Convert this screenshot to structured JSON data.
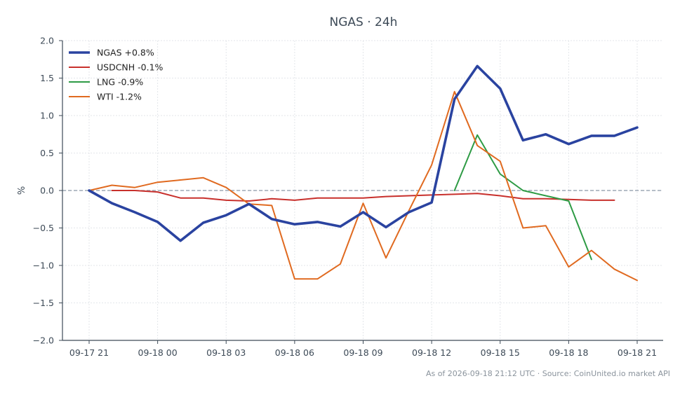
{
  "chart_data": {
    "type": "line",
    "title": "NGAS · 24h",
    "xlabel": "",
    "ylabel": "%",
    "ylim": [
      -2.0,
      2.0
    ],
    "yticks": [
      "2.0",
      "1.5",
      "1.0",
      "0.5",
      "0.0",
      "−0.5",
      "−1.0",
      "−1.5",
      "−2.0"
    ],
    "ytick_values": [
      2.0,
      1.5,
      1.0,
      0.5,
      0.0,
      -0.5,
      -1.0,
      -1.5,
      -2.0
    ],
    "xlim": [
      0,
      24.5
    ],
    "xtick_labels": [
      "09-17 21",
      "09-18 00",
      "09-18 03",
      "09-18 06",
      "09-18 09",
      "09-18 12",
      "09-18 15",
      "09-18 18",
      "09-18 21"
    ],
    "xtick_values": [
      0,
      3,
      6,
      9,
      12,
      15,
      18,
      21,
      24
    ],
    "grid": true,
    "zero_line": true,
    "legend_position": "top-left",
    "series": [
      {
        "name": "NGAS +0.8%",
        "color": "#2a43a0",
        "width": "thick",
        "x": [
          0,
          1,
          2,
          3,
          4,
          5,
          6,
          7,
          8,
          9,
          10,
          11,
          12,
          13,
          14,
          15,
          16,
          17,
          18,
          19,
          20,
          21,
          22,
          23,
          24
        ],
        "y": [
          0.0,
          -0.17,
          -0.29,
          -0.42,
          -0.67,
          -0.43,
          -0.33,
          -0.18,
          -0.38,
          -0.45,
          -0.42,
          -0.48,
          -0.29,
          -0.49,
          -0.29,
          -0.16,
          1.22,
          1.66,
          1.36,
          0.67,
          0.75,
          0.62,
          0.73,
          0.73,
          0.84
        ]
      },
      {
        "name": "USDCNH -0.1%",
        "color": "#c8302c",
        "width": "normal",
        "x": [
          1,
          2,
          3,
          4,
          5,
          6,
          7,
          8,
          9,
          10,
          11,
          12,
          13,
          14,
          15,
          16,
          17,
          18,
          19,
          20,
          21,
          22,
          23
        ],
        "y": [
          0.0,
          0.0,
          -0.02,
          -0.1,
          -0.1,
          -0.13,
          -0.14,
          -0.11,
          -0.13,
          -0.1,
          -0.1,
          -0.1,
          -0.08,
          -0.07,
          -0.06,
          -0.05,
          -0.04,
          -0.07,
          -0.11,
          -0.11,
          -0.12,
          -0.13,
          -0.13
        ]
      },
      {
        "name": "LNG -0.9%",
        "color": "#2e9b45",
        "width": "normal",
        "x": [
          16,
          17,
          18,
          19,
          20,
          21,
          22
        ],
        "y": [
          0.0,
          0.74,
          0.22,
          0.0,
          -0.07,
          -0.14,
          -0.92
        ]
      },
      {
        "name": "WTI -1.2%",
        "color": "#e06a20",
        "width": "normal",
        "x": [
          0,
          1,
          2,
          3,
          4,
          5,
          6,
          7,
          8,
          9,
          10,
          11,
          12,
          13,
          14,
          15,
          16,
          17,
          18,
          19,
          20,
          21,
          22,
          23,
          24
        ],
        "y": [
          0.0,
          0.07,
          0.04,
          0.11,
          0.14,
          0.17,
          0.04,
          -0.18,
          -0.2,
          -1.18,
          -1.18,
          -0.98,
          -0.17,
          -0.9,
          -0.27,
          0.34,
          1.32,
          0.6,
          0.39,
          -0.5,
          -0.47,
          -1.02,
          -0.8,
          -1.05,
          -1.2
        ]
      }
    ]
  },
  "footer": {
    "text": "As of 2026-09-18 21:12 UTC · Source: CoinUnited.io market API"
  },
  "colors": {
    "axis": "#3d4a57",
    "grid": "#e3e6ea",
    "zero_line": "#8a96a6"
  }
}
